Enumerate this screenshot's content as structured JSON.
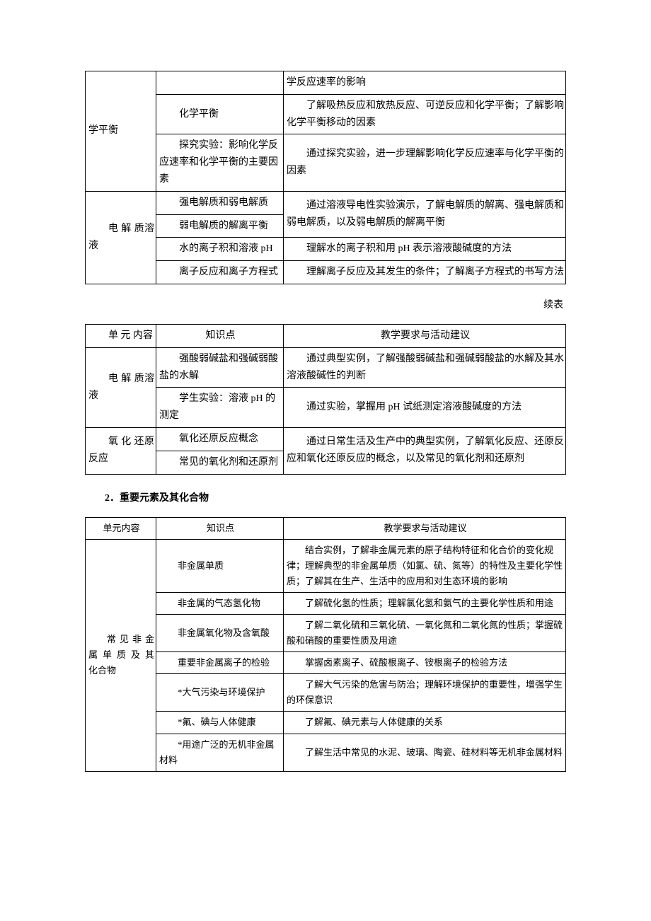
{
  "table1": {
    "rows": [
      {
        "unit": "学平衡",
        "unit_span": 3,
        "topic": "",
        "req": "学反应速率的影响"
      },
      {
        "topic": "化学平衡",
        "req": "了解吸热反应和放热反应、可逆反应和化学平衡；了解影响化学平衡移动的因素"
      },
      {
        "topic": "探究实验：影响化学反应速率和化学平衡的主要因素",
        "req": "通过探究实验，进一步理解影响化学反应速率与化学平衡的因素"
      },
      {
        "unit": "电 解 质溶液",
        "unit_span": 4,
        "topic": "强电解质和弱电解质",
        "req_span": 2,
        "req": "通过溶液导电性实验演示，了解电解质的解离、强电解质和弱电解质，以及弱电解质的解离平衡"
      },
      {
        "topic": "弱电解质的解离平衡"
      },
      {
        "topic": "水的离子积和溶液 pH",
        "req": "理解水的离子积和用 pH 表示溶液酸碱度的方法"
      },
      {
        "topic": "离子反应和离子方程式",
        "req": "理解离子反应及其发生的条件；了解离子方程式的书写方法"
      }
    ]
  },
  "continue_label": "续表",
  "table2": {
    "header": {
      "unit": "单 元 内容",
      "topic": "知识点",
      "req": "教学要求与活动建议"
    },
    "rows": [
      {
        "unit": "电 解 质溶液",
        "unit_span": 2,
        "topic": "强酸弱碱盐和强碱弱酸盐的水解",
        "req": "通过典型实例，了解强酸弱碱盐和强碱弱酸盐的水解及其水溶液酸碱性的判断"
      },
      {
        "topic": "学生实验：溶液 pH 的测定",
        "req": "通过实验，掌握用 pH 试纸测定溶液酸碱度的方法"
      },
      {
        "unit": "氧 化 还原反应",
        "unit_span": 2,
        "topic": "氧化还原反应概念",
        "req_span": 2,
        "req": "通过日常生活及生产中的典型实例，了解氧化反应、还原反应和氧化还原反应的概念，以及常见的氧化剂和还原剂"
      },
      {
        "topic": "常见的氧化剂和还原剂"
      }
    ]
  },
  "section_heading": "2．重要元素及其化合物",
  "table3": {
    "header": {
      "unit": "单元内容",
      "topic": "知识点",
      "req": "教学要求与活动建议"
    },
    "rows": [
      {
        "unit": "常 见 非 金属 单 质 及 其 化合物",
        "unit_span": 7,
        "topic": "非金属单质",
        "req": "结合实例，了解非金属元素的原子结构特征和化合价的变化规律；理解典型的非金属单质（如氯、硫、氮等）的特性及主要化学性质；了解其在生产、生活中的应用和对生态环境的影响"
      },
      {
        "topic": "非金属的气态氢化物",
        "req": "了解硫化氢的性质；理解氯化氢和氨气的主要化学性质和用途"
      },
      {
        "topic": "非金属氧化物及含氧酸",
        "req": "了解二氧化硫和三氧化硫、一氧化氮和二氧化氮的性质；掌握硫酸和硝酸的重要性质及用途"
      },
      {
        "topic": "重要非金属离子的检验",
        "req": "掌握卤素离子、硫酸根离子、铵根离子的检验方法"
      },
      {
        "topic": "*大气污染与环境保护",
        "req": "了解大气污染的危害与防治；理解环境保护的重要性，增强学生的环保意识"
      },
      {
        "topic": "*氟、碘与人体健康",
        "req": "了解氟、碘元素与人体健康的关系"
      },
      {
        "topic": "*用途广泛的无机非金属材料",
        "req": "了解生活中常见的水泥、玻璃、陶瓷、硅材料等无机非金属材料"
      }
    ]
  }
}
